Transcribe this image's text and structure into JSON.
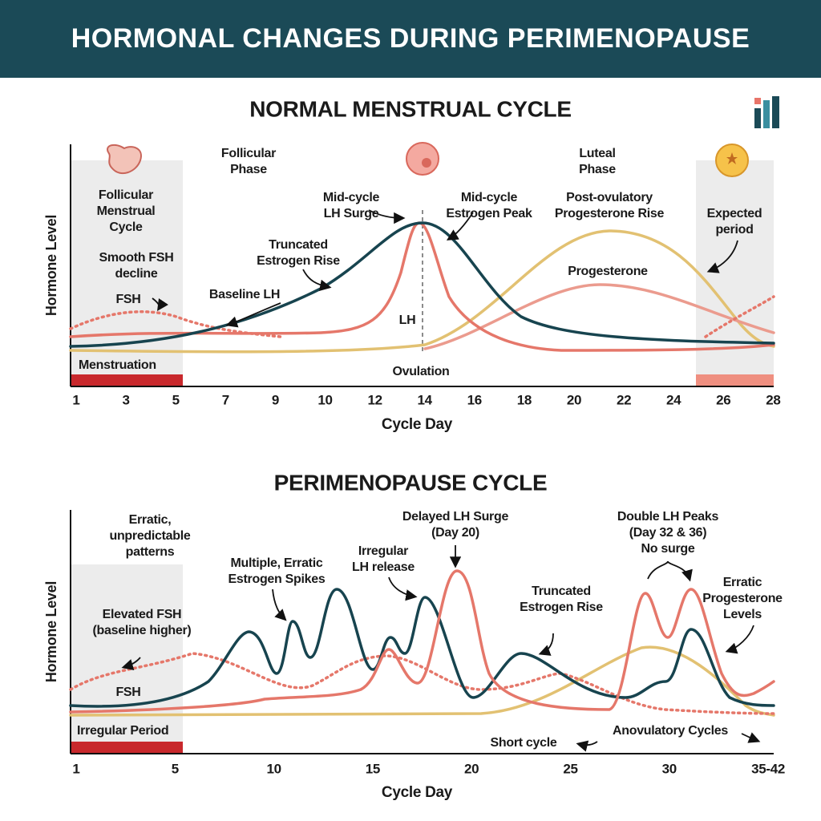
{
  "header": {
    "title": "HORMONAL CHANGES DURING PERIMENOPAUSE"
  },
  "normal": {
    "title": "NORMAL MENSTRUAL CYCLE",
    "y_label": "Hormone Level",
    "x_label": "Cycle Day",
    "x_ticks": [
      1,
      3,
      5,
      7,
      9,
      10,
      12,
      14,
      16,
      18,
      20,
      22,
      24,
      26,
      28
    ],
    "annotations": [
      {
        "lines": [
          "Follicular",
          "Phase"
        ]
      },
      {
        "lines": [
          "Luteal",
          "Phase"
        ]
      },
      {
        "lines": [
          "Follicular",
          "Menstrual",
          "Cycle"
        ]
      },
      {
        "lines": [
          "Smooth FSH",
          "decline"
        ]
      },
      {
        "lines": [
          "FSH"
        ]
      },
      {
        "lines": [
          "Baseline LH"
        ]
      },
      {
        "lines": [
          "Truncated",
          "Estrogen Rise"
        ]
      },
      {
        "lines": [
          "Mid-cycle",
          "LH Surge"
        ]
      },
      {
        "lines": [
          "Mid-cycle",
          "Estrogen Peak"
        ]
      },
      {
        "lines": [
          "Post-ovulatory",
          "Progesterone Rise"
        ]
      },
      {
        "lines": [
          "Progesterone"
        ]
      },
      {
        "lines": [
          "Expected",
          "period"
        ]
      },
      {
        "lines": [
          "LH"
        ]
      },
      {
        "lines": [
          "Menstruation"
        ]
      },
      {
        "lines": [
          "Ovulation"
        ]
      }
    ]
  },
  "perimenopause": {
    "title": "PERIMENOPAUSE CYCLE",
    "y_label": "Hormone Level",
    "x_label": "Cycle Day",
    "x_ticks": [
      1,
      5,
      10,
      15,
      20,
      25,
      30,
      "35-42"
    ],
    "annotations": [
      {
        "lines": [
          "Erratic,",
          "unpredictable",
          "patterns"
        ]
      },
      {
        "lines": [
          "Multiple, Erratic",
          "Estrogen Spikes"
        ]
      },
      {
        "lines": [
          "Irregular",
          "LH release"
        ]
      },
      {
        "lines": [
          "Delayed LH Surge",
          "(Day 20)"
        ]
      },
      {
        "lines": [
          "Truncated",
          "Estrogen Rise"
        ]
      },
      {
        "lines": [
          "Double LH Peaks",
          "(Day 32 & 36)",
          "No surge"
        ]
      },
      {
        "lines": [
          "Erratic",
          "Progesterone",
          "Levels"
        ]
      },
      {
        "lines": [
          "Elevated FSH",
          "(baseline higher)"
        ]
      },
      {
        "lines": [
          "FSH"
        ]
      },
      {
        "lines": [
          "Irregular Period"
        ]
      },
      {
        "lines": [
          "Short cycle"
        ]
      },
      {
        "lines": [
          "Anovulatory Cycles"
        ]
      }
    ]
  }
}
